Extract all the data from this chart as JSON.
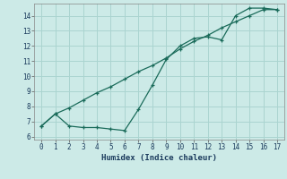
{
  "xlabel": "Humidex (Indice chaleur)",
  "ylabel": "",
  "background_color": "#cceae7",
  "grid_color": "#aad4d0",
  "line_color": "#1a6b5a",
  "xlim": [
    -0.5,
    17.5
  ],
  "ylim": [
    5.8,
    14.8
  ],
  "yticks": [
    6,
    7,
    8,
    9,
    10,
    11,
    12,
    13,
    14
  ],
  "xticks": [
    0,
    1,
    2,
    3,
    4,
    5,
    6,
    7,
    8,
    9,
    10,
    11,
    12,
    13,
    14,
    15,
    16,
    17
  ],
  "line1_x": [
    0,
    1,
    2,
    3,
    4,
    5,
    6,
    7,
    8,
    9,
    10,
    11,
    12,
    13,
    14,
    15,
    16,
    17
  ],
  "line1_y": [
    6.7,
    7.5,
    6.7,
    6.6,
    6.6,
    6.5,
    6.4,
    7.8,
    9.4,
    11.1,
    12.0,
    12.5,
    12.6,
    12.4,
    14.0,
    14.5,
    14.5,
    14.4
  ],
  "line2_x": [
    0,
    1,
    2,
    3,
    4,
    5,
    6,
    7,
    8,
    9,
    10,
    11,
    12,
    13,
    14,
    15,
    16,
    17
  ],
  "line2_y": [
    6.7,
    7.5,
    7.9,
    8.4,
    8.9,
    9.3,
    9.8,
    10.3,
    10.7,
    11.2,
    11.8,
    12.3,
    12.7,
    13.2,
    13.6,
    14.0,
    14.4,
    14.4
  ]
}
